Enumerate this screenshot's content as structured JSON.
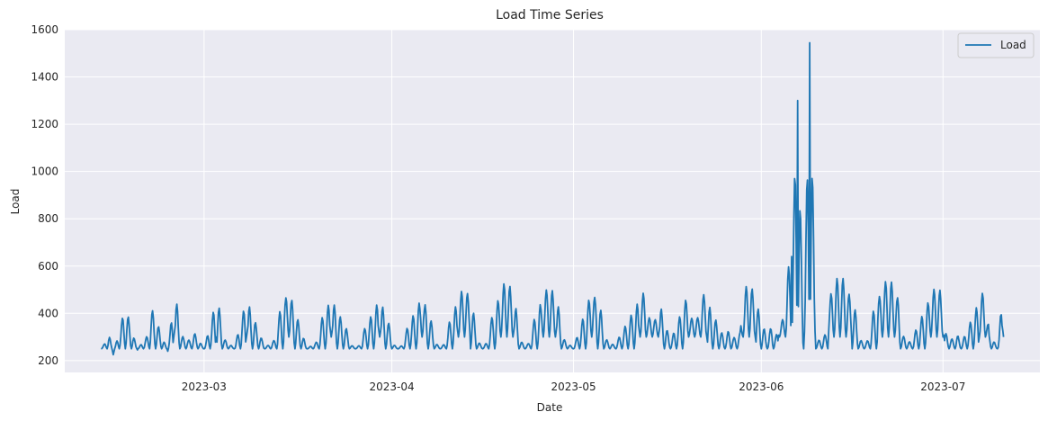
{
  "chart_data": {
    "type": "line",
    "title": "Load Time Series",
    "xlabel": "Date",
    "ylabel": "Load",
    "x_ticks": [
      "2023-03",
      "2023-04",
      "2023-05",
      "2023-06",
      "2023-07"
    ],
    "y_ticks": [
      200,
      400,
      600,
      800,
      1000,
      1200,
      1400,
      1600
    ],
    "xlim": [
      "2023-02-06",
      "2023-07-17"
    ],
    "ylim": [
      150,
      1600
    ],
    "grid": true,
    "legend_position": "top-right",
    "series": [
      {
        "name": "Load",
        "color": "#1f77b4",
        "x_start": "2023-02-12",
        "x_end": "2023-07-11",
        "points": [
          [
            "2023-02-12",
            255
          ],
          [
            "2023-02-13",
            355
          ],
          [
            "2023-02-14",
            225
          ],
          [
            "2023-02-16",
            430
          ],
          [
            "2023-02-18",
            245
          ],
          [
            "2023-02-20",
            445
          ],
          [
            "2023-02-23",
            240
          ],
          [
            "2023-02-24",
            460
          ],
          [
            "2023-03-01",
            250
          ],
          [
            "2023-03-03",
            455
          ],
          [
            "2023-03-06",
            255
          ],
          [
            "2023-03-08",
            460
          ],
          [
            "2023-03-11",
            260
          ],
          [
            "2023-03-15",
            495
          ],
          [
            "2023-03-18",
            250
          ],
          [
            "2023-03-22",
            460
          ],
          [
            "2023-03-26",
            260
          ],
          [
            "2023-03-30",
            460
          ],
          [
            "2023-04-02",
            255
          ],
          [
            "2023-04-06",
            470
          ],
          [
            "2023-04-09",
            265
          ],
          [
            "2023-04-13",
            525
          ],
          [
            "2023-04-16",
            275
          ],
          [
            "2023-04-20",
            560
          ],
          [
            "2023-04-23",
            280
          ],
          [
            "2023-04-27",
            530
          ],
          [
            "2023-05-01",
            255
          ],
          [
            "2023-05-04",
            495
          ],
          [
            "2023-05-08",
            275
          ],
          [
            "2023-05-14",
            555
          ],
          [
            "2023-05-17",
            280
          ],
          [
            "2023-05-21",
            560
          ],
          [
            "2023-05-26",
            290
          ],
          [
            "2023-05-30",
            545
          ],
          [
            "2023-06-02",
            290
          ],
          [
            "2023-06-06",
            640
          ],
          [
            "2023-06-07",
            1300
          ],
          [
            "2023-06-08",
            300
          ],
          [
            "2023-06-09",
            1545
          ],
          [
            "2023-06-10",
            320
          ],
          [
            "2023-06-14",
            580
          ],
          [
            "2023-06-18",
            315
          ],
          [
            "2023-06-22",
            565
          ],
          [
            "2023-06-26",
            300
          ],
          [
            "2023-06-30",
            530
          ],
          [
            "2023-07-04",
            270
          ],
          [
            "2023-07-08",
            515
          ],
          [
            "2023-07-10",
            265
          ],
          [
            "2023-07-11",
            510
          ]
        ]
      }
    ]
  }
}
